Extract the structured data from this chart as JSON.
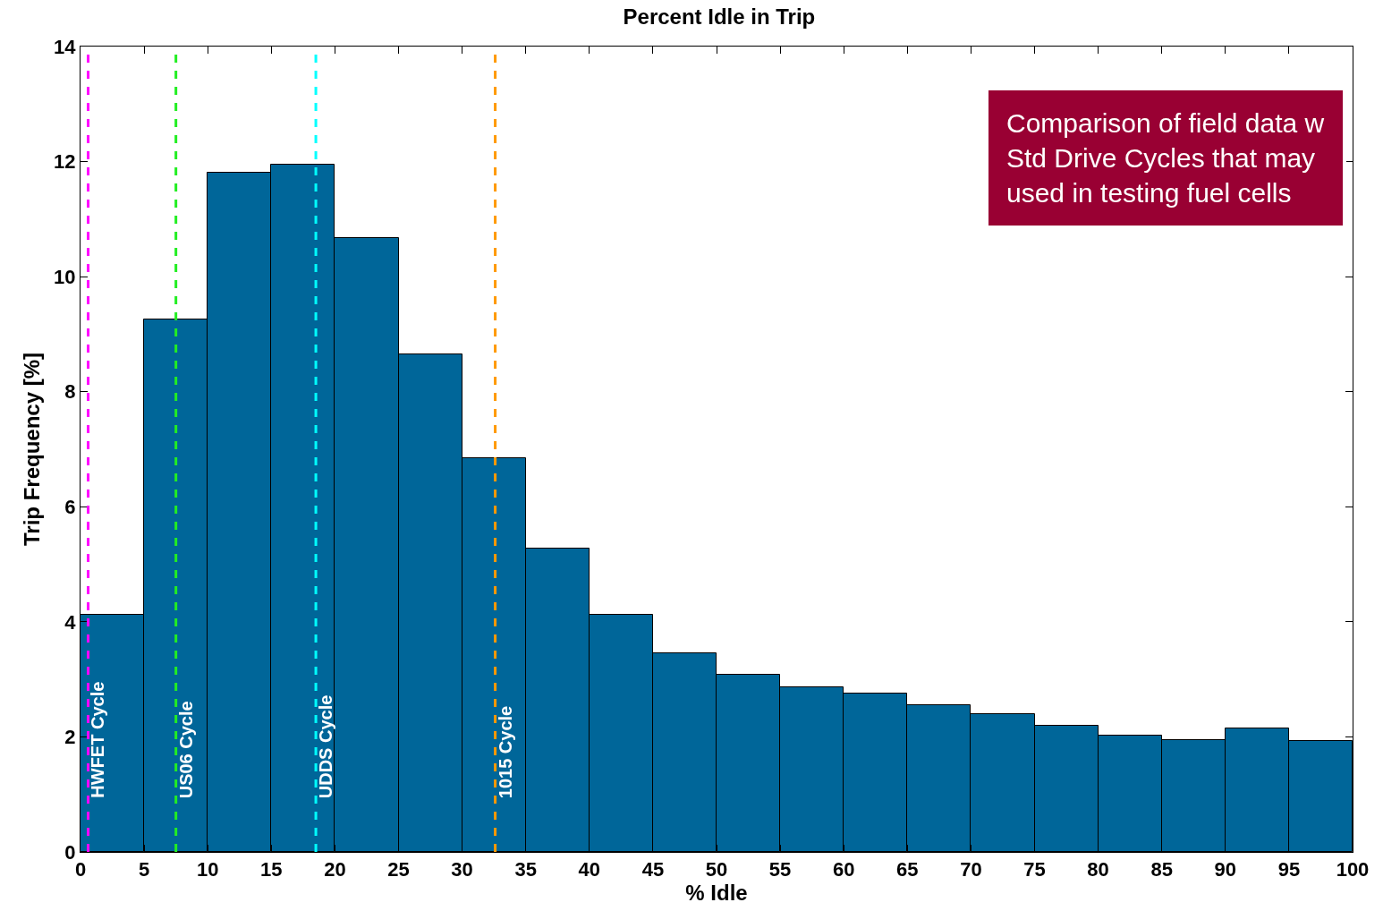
{
  "chart_data": {
    "type": "histogram",
    "title": "Percent Idle in Trip",
    "xlabel": "% Idle",
    "ylabel": "Trip Frequency [%]",
    "bins": [
      0,
      5,
      10,
      15,
      20,
      25,
      30,
      35,
      40,
      45,
      50,
      55,
      60,
      65,
      70,
      75,
      80,
      85,
      90,
      95,
      100
    ],
    "values": [
      4.12,
      9.25,
      11.8,
      11.95,
      10.67,
      8.65,
      6.85,
      5.28,
      4.13,
      3.45,
      3.08,
      2.87,
      2.75,
      2.55,
      2.4,
      2.2,
      2.02,
      1.95,
      2.15,
      1.93
    ],
    "color": "#006699",
    "xlim": [
      0,
      100
    ],
    "xticks": [
      0,
      5,
      10,
      15,
      20,
      25,
      30,
      35,
      40,
      45,
      50,
      55,
      60,
      65,
      70,
      75,
      80,
      85,
      90,
      95,
      100
    ],
    "ylim": [
      0,
      14
    ],
    "yticks": [
      0,
      2,
      4,
      6,
      8,
      10,
      12,
      14
    ],
    "ref_lines": [
      {
        "axis": "x",
        "value": 0.6,
        "label": "HWFET Cycle",
        "color": "#ff00ff",
        "line_style": "dashed"
      },
      {
        "axis": "x",
        "value": 7.5,
        "label": "US06 Cycle",
        "color": "#22ee22",
        "line_style": "dashed"
      },
      {
        "axis": "x",
        "value": 18.5,
        "label": "UDDS Cycle",
        "color": "#00ffff",
        "line_style": "dashed"
      },
      {
        "axis": "x",
        "value": 32.6,
        "label": "1015 Cycle",
        "color": "#ff9900",
        "line_style": "dashed"
      }
    ],
    "annotations": [
      "Comparison of field data w\nStd Drive Cycles that may\nused in testing fuel cells"
    ]
  }
}
